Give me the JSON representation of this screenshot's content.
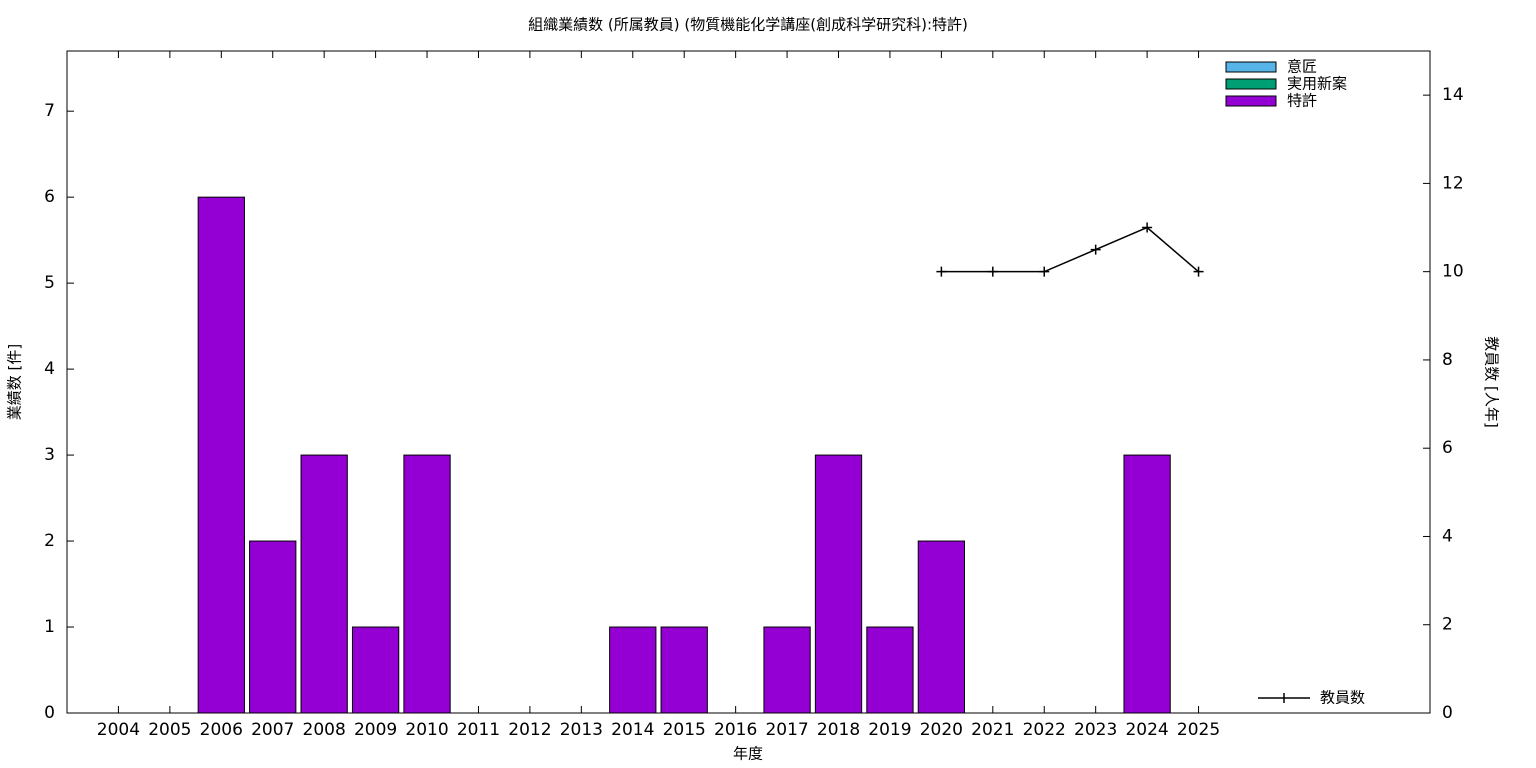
{
  "chart_data": {
    "type": "bar",
    "stacked": true,
    "title": "組織業績数 (所属教員) (物質機能化学講座(創成科学研究科):特許)",
    "x_label": "年度",
    "y_label": "業績数 [件]",
    "y2_label": "教員数 [人年]",
    "categories": [
      "2004",
      "2005",
      "2006",
      "2007",
      "2008",
      "2009",
      "2010",
      "2011",
      "2012",
      "2013",
      "2014",
      "2015",
      "2016",
      "2017",
      "2018",
      "2019",
      "2020",
      "2021",
      "2022",
      "2023",
      "2024",
      "2025"
    ],
    "series": [
      {
        "name": "意匠",
        "color": "#56b4e9",
        "values": [
          0,
          0,
          0,
          0,
          0,
          0,
          0,
          0,
          0,
          0,
          0,
          0,
          0,
          0,
          0,
          0,
          0,
          0,
          0,
          0,
          0,
          0
        ]
      },
      {
        "name": "実用新案",
        "color": "#009e73",
        "values": [
          0,
          0,
          0,
          0,
          0,
          0,
          0,
          0,
          0,
          0,
          0,
          0,
          0,
          0,
          0,
          0,
          0,
          0,
          0,
          0,
          0,
          0
        ]
      },
      {
        "name": "特許",
        "color": "#9400d3",
        "values": [
          0,
          0,
          6,
          2,
          3,
          1,
          3,
          0,
          0,
          0,
          1,
          1,
          0,
          1,
          3,
          1,
          2,
          0,
          0,
          0,
          3,
          0
        ]
      },
      {
        "name": "教員数",
        "type": "line",
        "axis": "y2",
        "color": "#000000",
        "values": [
          null,
          null,
          null,
          null,
          null,
          null,
          null,
          null,
          null,
          null,
          null,
          null,
          null,
          null,
          null,
          null,
          10,
          10,
          10,
          10.5,
          11,
          10
        ]
      }
    ],
    "ylim": [
      0,
      7.7
    ],
    "yticks": [
      0,
      1,
      2,
      3,
      4,
      5,
      6,
      7
    ],
    "y2lim": [
      0,
      15
    ],
    "y2ticks": [
      0,
      2,
      4,
      6,
      8,
      10,
      12,
      14
    ],
    "grid": false,
    "legend": "top right"
  }
}
